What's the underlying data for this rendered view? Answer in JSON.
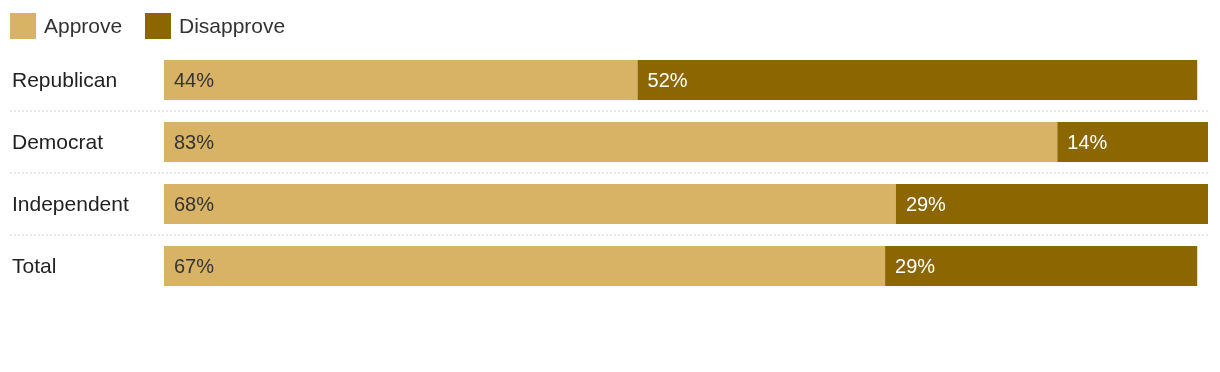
{
  "chart_data": {
    "type": "bar",
    "orientation": "horizontal",
    "stacked": true,
    "legend": "top left",
    "categories": [
      "Republican",
      "Democrat",
      "Independent",
      "Total"
    ],
    "series": [
      {
        "name": "Approve",
        "color": "#d8b365",
        "values": [
          44,
          83,
          68,
          67
        ],
        "value_labels": [
          "44%",
          "83%",
          "68%",
          "67%"
        ]
      },
      {
        "name": "Disapprove",
        "color": "#8c6600",
        "values": [
          52,
          14,
          29,
          29
        ],
        "value_labels": [
          "52%",
          "14%",
          "29%",
          "29%"
        ]
      }
    ]
  }
}
